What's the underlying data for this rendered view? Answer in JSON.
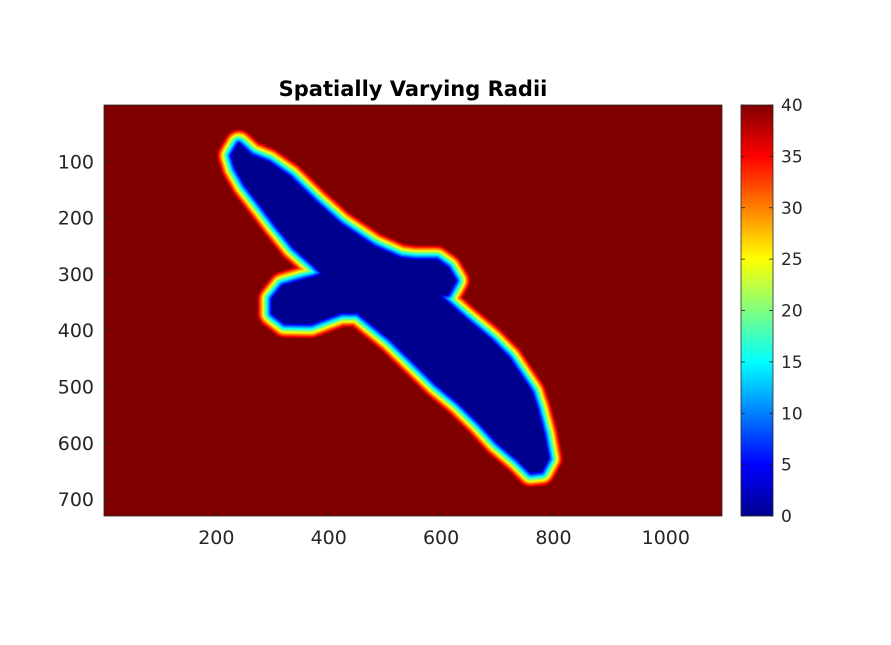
{
  "chart_data": {
    "type": "heatmap",
    "title": "Spatially Varying Radii",
    "xlabel": "",
    "ylabel": "",
    "colormap": "jet",
    "xlim": [
      0,
      1100
    ],
    "ylim": [
      0,
      730
    ],
    "y_reversed": true,
    "xticks": [
      200,
      400,
      600,
      800,
      1000
    ],
    "yticks": [
      100,
      200,
      300,
      400,
      500,
      600,
      700
    ],
    "colorbar": {
      "ticks": [
        0,
        5,
        10,
        15,
        20,
        25,
        30,
        35,
        40
      ],
      "range": [
        0,
        40
      ]
    },
    "background_value": 40,
    "region_value": 0,
    "transition_band": [
      0,
      40
    ],
    "shape": "bird silhouette (wings spread, diagonal from top-left to bottom-right)",
    "shape_outline": [
      [
        240,
        70
      ],
      [
        262,
        90
      ],
      [
        292,
        102
      ],
      [
        330,
        128
      ],
      [
        375,
        172
      ],
      [
        420,
        212
      ],
      [
        480,
        252
      ],
      [
        528,
        273
      ],
      [
        555,
        276
      ],
      [
        592,
        276
      ],
      [
        612,
        290
      ],
      [
        625,
        312
      ],
      [
        612,
        336
      ],
      [
        595,
        338
      ],
      [
        640,
        378
      ],
      [
        688,
        418
      ],
      [
        720,
        450
      ],
      [
        750,
        495
      ],
      [
        760,
        510
      ],
      [
        770,
        540
      ],
      [
        782,
        585
      ],
      [
        790,
        628
      ],
      [
        778,
        650
      ],
      [
        760,
        652
      ],
      [
        738,
        630
      ],
      [
        700,
        598
      ],
      [
        670,
        565
      ],
      [
        632,
        528
      ],
      [
        592,
        495
      ],
      [
        548,
        452
      ],
      [
        510,
        415
      ],
      [
        470,
        383
      ],
      [
        452,
        368
      ],
      [
        422,
        368
      ],
      [
        395,
        378
      ],
      [
        368,
        388
      ],
      [
        322,
        387
      ],
      [
        300,
        370
      ],
      [
        300,
        345
      ],
      [
        318,
        322
      ],
      [
        352,
        312
      ],
      [
        374,
        307
      ],
      [
        390,
        300
      ],
      [
        372,
        282
      ],
      [
        338,
        252
      ],
      [
        308,
        215
      ],
      [
        280,
        178
      ],
      [
        252,
        142
      ],
      [
        235,
        112
      ],
      [
        228,
        90
      ]
    ],
    "colors": {
      "background": "#800000",
      "inside": "#00008f"
    }
  }
}
